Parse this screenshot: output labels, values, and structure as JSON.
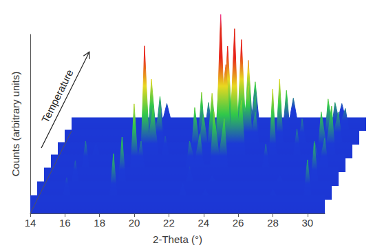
{
  "chart_data": {
    "type": "line",
    "x_label": "2-Theta (°)",
    "y_label": "Counts (arbitrary units)",
    "annotations": [
      "Temperature"
    ],
    "xlim": [
      14,
      31
    ],
    "xticks": [
      14,
      16,
      18,
      20,
      22,
      24,
      26,
      28,
      30
    ],
    "ylim": [
      0,
      120
    ],
    "tick_labels": "x",
    "grid": false,
    "series": [
      {
        "x": [
          14,
          15.9,
          16.1,
          16.3,
          18.6,
          18.8,
          19.0,
          22.6,
          22.8,
          23.0,
          23.9,
          24.1,
          24.3,
          27.8,
          28.0,
          28.2,
          29.8,
          30.0,
          30.2,
          31
        ],
        "values": [
          12,
          12,
          24,
          12,
          12,
          40,
          12,
          12,
          20,
          12,
          12,
          16,
          12,
          12,
          16,
          12,
          12,
          36,
          12,
          12
        ]
      },
      {
        "x": [
          14,
          16.0,
          16.2,
          16.4,
          18.7,
          18.9,
          19.1,
          22.6,
          22.8,
          23.0,
          23.9,
          24.1,
          24.3,
          27.8,
          28.0,
          28.2,
          29.8,
          30.0,
          30.2,
          31
        ],
        "values": [
          12,
          12,
          26,
          12,
          12,
          42,
          12,
          12,
          22,
          12,
          12,
          16,
          12,
          12,
          16,
          12,
          12,
          38,
          12,
          12
        ]
      },
      {
        "x": [
          14,
          16.2,
          16.4,
          16.6,
          19.0,
          19.2,
          19.4,
          19.6,
          19.8,
          22.2,
          22.4,
          22.7,
          23.0,
          23.2,
          23.6,
          23.8,
          24.1,
          24.4,
          24.6,
          26.6,
          26.8,
          27.0,
          29.4,
          29.6,
          29.9,
          30.2,
          30.4,
          31
        ],
        "values": [
          12,
          12,
          30,
          12,
          12,
          55,
          18,
          30,
          12,
          12,
          30,
          16,
          35,
          14,
          14,
          50,
          20,
          45,
          12,
          12,
          28,
          12,
          12,
          30,
          15,
          32,
          12,
          12
        ]
      },
      {
        "x": [
          14,
          16.4,
          16.6,
          16.8,
          19.2,
          19.4,
          19.65,
          19.9,
          20.2,
          20.4,
          20.6,
          20.8,
          22.1,
          22.3,
          22.55,
          22.8,
          23.05,
          23.3,
          23.55,
          23.8,
          23.95,
          24.1,
          24.35,
          24.6,
          24.8,
          25.0,
          25.2,
          26.6,
          26.8,
          27.0,
          28.0,
          28.2,
          28.4,
          29.4,
          29.6,
          29.9,
          30.2,
          30.4,
          31
        ],
        "values": [
          12,
          12,
          20,
          12,
          12,
          88,
          25,
          45,
          12,
          12,
          25,
          12,
          12,
          45,
          20,
          40,
          18,
          55,
          22,
          110,
          60,
          75,
          30,
          100,
          35,
          50,
          12,
          12,
          58,
          12,
          12,
          30,
          12,
          12,
          42,
          18,
          46,
          12,
          12
        ]
      },
      {
        "x": [
          14,
          19.2,
          19.4,
          19.65,
          19.9,
          20.1,
          22.1,
          22.3,
          22.5,
          23.1,
          23.3,
          23.55,
          23.8,
          24.0,
          24.2,
          24.4,
          24.6,
          24.8,
          25.0,
          25.2,
          25.4,
          25.6,
          26.6,
          26.8,
          27.0,
          27.9,
          28.1,
          28.3,
          29.4,
          29.6,
          29.9,
          30.2,
          30.4,
          31
        ],
        "values": [
          12,
          12,
          60,
          22,
          40,
          12,
          12,
          50,
          12,
          12,
          60,
          25,
          85,
          40,
          70,
          30,
          90,
          35,
          55,
          20,
          35,
          12,
          12,
          60,
          12,
          12,
          30,
          12,
          12,
          45,
          18,
          35,
          12,
          12
        ]
      },
      {
        "x": [
          14,
          19.3,
          19.5,
          19.7,
          22.1,
          22.3,
          22.5,
          23.1,
          23.3,
          23.55,
          23.8,
          24.0,
          24.4,
          24.6,
          24.8,
          25.0,
          25.2,
          26.6,
          26.8,
          27.0,
          29.4,
          29.6,
          29.9,
          30.2,
          30.4,
          31
        ],
        "values": [
          12,
          12,
          40,
          12,
          12,
          35,
          12,
          12,
          45,
          20,
          65,
          12,
          12,
          70,
          25,
          40,
          12,
          12,
          45,
          12,
          12,
          35,
          16,
          30,
          12,
          12
        ]
      },
      {
        "x": [
          14,
          19.3,
          19.5,
          19.7,
          23.6,
          23.8,
          24.0,
          24.4,
          24.6,
          24.8,
          26.6,
          26.8,
          27.0,
          29.4,
          29.6,
          29.8,
          31
        ],
        "values": [
          12,
          12,
          25,
          12,
          12,
          40,
          12,
          12,
          45,
          12,
          12,
          30,
          12,
          12,
          25,
          12,
          12
        ]
      }
    ]
  }
}
